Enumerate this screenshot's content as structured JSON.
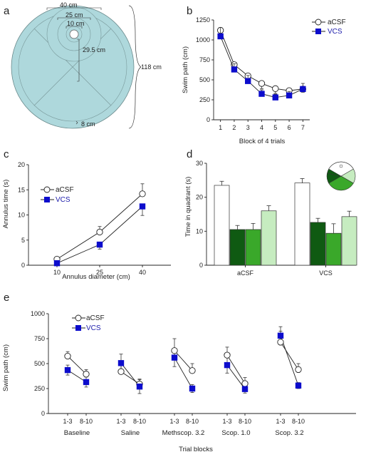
{
  "panel_labels": [
    "a",
    "b",
    "c",
    "d",
    "e"
  ],
  "colors": {
    "pool": "#aed8dc",
    "vcs_marker": "#0c0ccc",
    "vcs_legend_text": "#1a1aaa",
    "acsf_marker": "#ffffff",
    "quadrant_target": "#ffffff",
    "quadrant_dark": "#0f5a12",
    "quadrant_mid": "#3aa82a",
    "quadrant_light": "#c6ecc0"
  },
  "schematic": {
    "annulus_labels": [
      "40 cm",
      "25 cm",
      "10 cm"
    ],
    "distance_label": "29.5 cm",
    "diameter_label": "118 cm",
    "wall_label": "8 cm"
  },
  "chart_data": [
    {
      "panel": "b",
      "type": "line",
      "xlabel": "Block of 4 trials",
      "ylabel": "Swim path (cm)",
      "x": [
        1,
        2,
        3,
        4,
        5,
        6,
        7
      ],
      "xlim": [
        0.5,
        7.5
      ],
      "ylim": [
        0,
        1250
      ],
      "yticks": [
        0,
        250,
        500,
        750,
        1000,
        1250
      ],
      "legend": "top-right",
      "series": [
        {
          "name": "aCSF",
          "marker": "open-circle",
          "values": [
            1120,
            690,
            550,
            455,
            390,
            365,
            385
          ],
          "errors": [
            55,
            85,
            70,
            65,
            60,
            45,
            40
          ]
        },
        {
          "name": "VCS",
          "marker": "filled-square",
          "values": [
            1045,
            630,
            485,
            325,
            280,
            305,
            385
          ],
          "errors": [
            110,
            70,
            70,
            50,
            40,
            50,
            70
          ]
        }
      ]
    },
    {
      "panel": "c",
      "type": "line",
      "xlabel": "Annulus diameter (cm)",
      "ylabel": "Annulus time (s)",
      "x": [
        10,
        25,
        40
      ],
      "xlim": [
        0,
        50
      ],
      "ylim": [
        0,
        20
      ],
      "yticks": [
        0,
        5,
        10,
        15,
        20
      ],
      "legend": "top-left",
      "series": [
        {
          "name": "aCSF",
          "marker": "open-circle",
          "values": [
            1.2,
            6.6,
            14.2
          ],
          "errors": [
            0.3,
            1.1,
            2.0
          ]
        },
        {
          "name": "VCS",
          "marker": "filled-square",
          "values": [
            0.4,
            4.1,
            11.7
          ],
          "errors": [
            0.2,
            0.9,
            1.8
          ]
        }
      ]
    },
    {
      "panel": "d",
      "type": "bar",
      "ylabel": "Time in quadrant (s)",
      "categories": [
        "aCSF",
        "VCS"
      ],
      "ylim": [
        0,
        30
      ],
      "yticks": [
        0,
        10,
        20,
        30
      ],
      "bar_colors": [
        "#ffffff",
        "#0f5a12",
        "#3aa82a",
        "#c6ecc0"
      ],
      "groups": [
        {
          "label": "aCSF",
          "values": [
            23.5,
            10.5,
            10.5,
            16.0
          ],
          "errors": [
            1.2,
            1.2,
            1.8,
            1.5
          ]
        },
        {
          "label": "VCS",
          "values": [
            24.2,
            12.6,
            9.4,
            14.3
          ],
          "errors": [
            1.3,
            1.2,
            2.8,
            1.6
          ]
        }
      ]
    },
    {
      "panel": "e",
      "type": "line",
      "xlabel": "Trial blocks",
      "ylabel": "Swim path (cm)",
      "ylim": [
        0,
        1000
      ],
      "yticks": [
        0,
        250,
        500,
        750,
        1000
      ],
      "tick_labels": [
        "1-3",
        "8-10"
      ],
      "legend": "top-left",
      "groups": [
        {
          "label": "Baseline",
          "aCSF": [
            575,
            395
          ],
          "VCS": [
            435,
            315
          ],
          "aCSF_err": [
            45,
            45
          ],
          "VCS_err": [
            50,
            50
          ]
        },
        {
          "label": "Saline",
          "aCSF": [
            420,
            295
          ],
          "VCS": [
            505,
            270
          ],
          "aCSF_err": [
            60,
            50
          ],
          "VCS_err": [
            90,
            70
          ]
        },
        {
          "label": "Methscop. 3.2",
          "aCSF": [
            630,
            430
          ],
          "VCS": [
            560,
            250
          ],
          "aCSF_err": [
            120,
            70
          ],
          "VCS_err": [
            90,
            40
          ]
        },
        {
          "label": "Scop. 1.0",
          "aCSF": [
            585,
            300
          ],
          "VCS": [
            485,
            245
          ],
          "aCSF_err": [
            80,
            60
          ],
          "VCS_err": [
            80,
            40
          ]
        },
        {
          "label": "Scop. 3.2",
          "aCSF": [
            715,
            440
          ],
          "VCS": [
            780,
            280
          ],
          "aCSF_err": [
            110,
            60
          ],
          "VCS_err": [
            90,
            30
          ]
        }
      ],
      "series": [
        {
          "name": "aCSF",
          "marker": "open-circle"
        },
        {
          "name": "VCS",
          "marker": "filled-square"
        }
      ]
    }
  ]
}
